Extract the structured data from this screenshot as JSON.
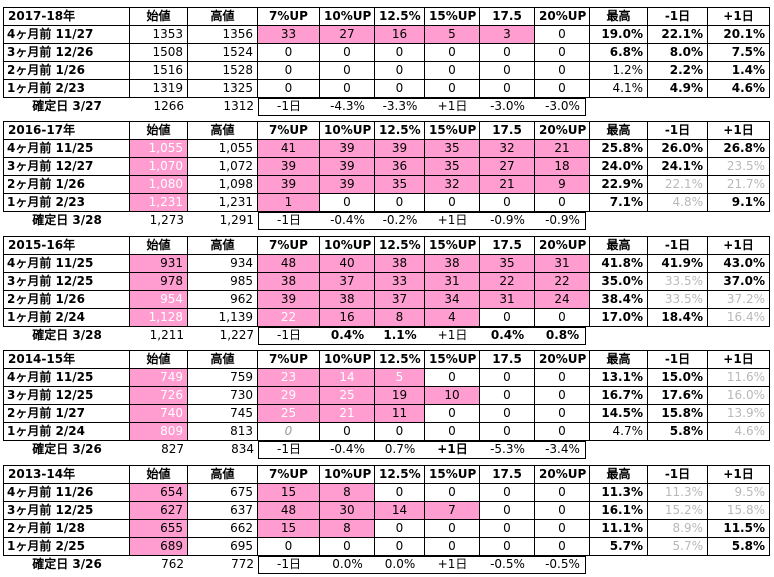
{
  "tables": [
    {
      "header": [
        "2017-18年",
        "始値",
        "高値",
        "7%UP",
        "10%UP",
        "12.5%",
        "15%UP",
        "17.5",
        "20%UP",
        "最高",
        "-1日",
        "+1日"
      ],
      "rows": [
        [
          "4ヶ月前 11/27",
          "1353",
          "1356",
          "33",
          "27",
          "16",
          "5",
          "3",
          "0",
          "19.0%",
          "22.1%",
          "20.1%"
        ],
        [
          "3ヶ月前 12/26",
          "1508",
          "1524",
          "0",
          "0",
          "0",
          "0",
          "0",
          "0",
          "6.8%",
          "8.0%",
          "7.5%"
        ],
        [
          "2ヶ月前 1/26",
          "1516",
          "1528",
          "0",
          "0",
          "0",
          "0",
          "0",
          "0",
          "1.2%",
          "2.2%",
          "1.4%"
        ],
        [
          "1ヶ月前 2/23",
          "1319",
          "1325",
          "0",
          "0",
          "0",
          "0",
          "0",
          "0",
          "4.1%",
          "4.9%",
          "4.6%"
        ],
        [
          "確定日 3/27",
          "1266",
          "1312",
          "-1日",
          "-4.3%",
          "-3.3%",
          "+1日",
          "-3.0%",
          "-3.0%"
        ]
      ]
    },
    {
      "header": [
        "2016-17年",
        "始値",
        "高値",
        "7%UP",
        "10%UP",
        "12.5%",
        "15%UP",
        "17.5",
        "20%UP",
        "最高",
        "-1日",
        "+1日"
      ],
      "rows": [
        [
          "4ヶ月前 11/25",
          "1,055",
          "1,055",
          "41",
          "39",
          "39",
          "35",
          "32",
          "21",
          "25.8%",
          "26.0%",
          "26.8%"
        ],
        [
          "3ヶ月前 12/27",
          "1,070",
          "1,072",
          "39",
          "39",
          "36",
          "35",
          "27",
          "18",
          "24.0%",
          "24.1%",
          "23.5%"
        ],
        [
          "2ヶ月前 1/26",
          "1,080",
          "1,098",
          "39",
          "39",
          "35",
          "32",
          "21",
          "9",
          "22.9%",
          "22.1%",
          "21.7%"
        ],
        [
          "1ヶ月前 2/23",
          "1,231",
          "1,231",
          "1",
          "0",
          "0",
          "0",
          "0",
          "0",
          "7.1%",
          "4.8%",
          "9.1%"
        ],
        [
          "確定日 3/28",
          "1,273",
          "1,291",
          "-1日",
          "-0.4%",
          "-0.2%",
          "+1日",
          "-0.9%",
          "-0.9%"
        ]
      ]
    },
    {
      "header": [
        "2015-16年",
        "始値",
        "高値",
        "7%UP",
        "10%UP",
        "12.5%",
        "15%UP",
        "17.5",
        "20%UP",
        "最高",
        "-1日",
        "+1日"
      ],
      "rows": [
        [
          "4ヶ月前 11/25",
          "931",
          "934",
          "48",
          "40",
          "38",
          "38",
          "35",
          "31",
          "41.8%",
          "41.9%",
          "43.0%"
        ],
        [
          "3ヶ月前 12/25",
          "978",
          "985",
          "38",
          "37",
          "33",
          "31",
          "22",
          "22",
          "35.0%",
          "33.5%",
          "37.0%"
        ],
        [
          "2ヶ月前 1/26",
          "954",
          "962",
          "39",
          "38",
          "37",
          "34",
          "31",
          "24",
          "38.4%",
          "33.5%",
          "37.2%"
        ],
        [
          "1ヶ月前 2/24",
          "1,128",
          "1,139",
          "22",
          "16",
          "8",
          "4",
          "0",
          "0",
          "17.0%",
          "18.4%",
          "16.4%"
        ],
        [
          "確定日 3/28",
          "1,211",
          "1,227",
          "-1日",
          "0.4%",
          "1.1%",
          "+1日",
          "0.4%",
          "0.8%"
        ]
      ]
    },
    {
      "header": [
        "2014-15年",
        "始値",
        "高値",
        "7%UP",
        "10%UP",
        "12.5%",
        "15%UP",
        "17.5",
        "20%UP",
        "最高",
        "-1日",
        "+1日"
      ],
      "rows": [
        [
          "4ヶ月前 11/25",
          "749",
          "759",
          "23",
          "14",
          "5",
          "0",
          "0",
          "0",
          "13.1%",
          "15.0%",
          "11.6%"
        ],
        [
          "3ヶ月前 12/25",
          "726",
          "730",
          "29",
          "25",
          "19",
          "10",
          "0",
          "0",
          "16.7%",
          "17.6%",
          "16.0%"
        ],
        [
          "2ヶ月前 1/27",
          "740",
          "745",
          "25",
          "21",
          "11",
          "0",
          "0",
          "0",
          "14.5%",
          "15.8%",
          "13.9%"
        ],
        [
          "1ヶ月前 2/24",
          "809",
          "813",
          "0",
          "0",
          "0",
          "0",
          "0",
          "0",
          "4.7%",
          "5.8%",
          "4.6%"
        ],
        [
          "確定日 3/26",
          "827",
          "834",
          "-1日",
          "-0.4%",
          "0.7%",
          "+1日",
          "-5.3%",
          "-3.4%"
        ]
      ]
    },
    {
      "header": [
        "2013-14年",
        "始値",
        "高値",
        "7%UP",
        "10%UP",
        "12.5%",
        "15%UP",
        "17.5",
        "20%UP",
        "最高",
        "-1日",
        "+1日"
      ],
      "rows": [
        [
          "4ヶ月前 11/26",
          "654",
          "675",
          "15",
          "8",
          "0",
          "0",
          "0",
          "0",
          "11.3%",
          "11.3%",
          "9.5%"
        ],
        [
          "3ヶ月前 12/25",
          "627",
          "637",
          "48",
          "30",
          "14",
          "7",
          "0",
          "0",
          "16.1%",
          "15.2%",
          "15.8%"
        ],
        [
          "2ヶ月前 1/28",
          "655",
          "662",
          "15",
          "8",
          "0",
          "0",
          "0",
          "0",
          "11.1%",
          "8.9%",
          "11.5%"
        ],
        [
          "1ヶ月前 2/25",
          "689",
          "695",
          "0",
          "0",
          "0",
          "0",
          "0",
          "0",
          "5.7%",
          "5.7%",
          "5.8%"
        ],
        [
          "確定日 3/26",
          "762",
          "772",
          "-1日",
          "0.0%",
          "0.0%",
          "+1日",
          "-0.5%",
          "-0.5%"
        ]
      ]
    }
  ]
}
